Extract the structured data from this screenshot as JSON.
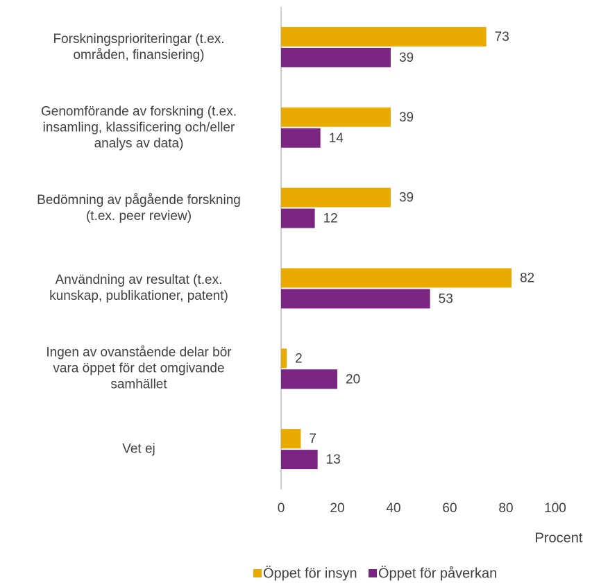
{
  "chart_data": {
    "type": "hbar",
    "categories": [
      "Forskningsprioriteringar (t.ex.\nområden, finansiering)",
      "Genomförande av forskning (t.ex.\ninsamling, klassificering och/eller\nanalys av data)",
      "Bedömning av pågående forskning\n(t.ex. peer review)",
      "Användning av resultat (t.ex.\nkunskap, publikationer, patent)",
      "Ingen av ovanstående delar bör\nvara öppet för det omgivande\nsamhället",
      "Vet ej"
    ],
    "series": [
      {
        "name": "Öppet för insyn",
        "color": "#eaab00",
        "values": [
          73,
          39,
          39,
          82,
          2,
          7
        ]
      },
      {
        "name": "Öppet för påverkan",
        "color": "#7b2582",
        "values": [
          39,
          14,
          12,
          53,
          20,
          13
        ]
      }
    ],
    "xlabel": "Procent",
    "xlim": [
      0,
      100
    ],
    "xticks": [
      0,
      20,
      40,
      60,
      80,
      100
    ],
    "legend": "bottom"
  }
}
